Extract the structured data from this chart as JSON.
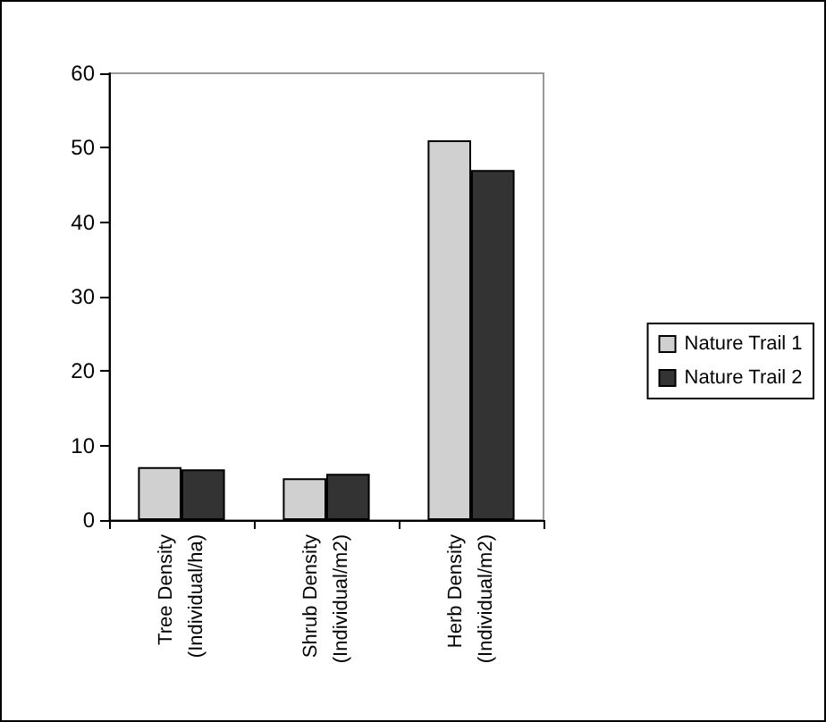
{
  "chart_data": {
    "type": "bar",
    "categories": [
      "Tree Density (Individual/ha)",
      "Shrub Density (Individual/m2)",
      "Herb Density (Individual/m2)"
    ],
    "series": [
      {
        "name": "Nature Trail 1",
        "color": "#d0d0d0",
        "values": [
          7.1,
          5.6,
          51
        ]
      },
      {
        "name": "Nature Trail 2",
        "color": "#333333",
        "values": [
          6.8,
          6.2,
          47
        ]
      }
    ],
    "ylim": [
      0,
      60
    ],
    "yticks": [
      0,
      10,
      20,
      30,
      40,
      50,
      60
    ],
    "grid": false,
    "legend": "right"
  }
}
